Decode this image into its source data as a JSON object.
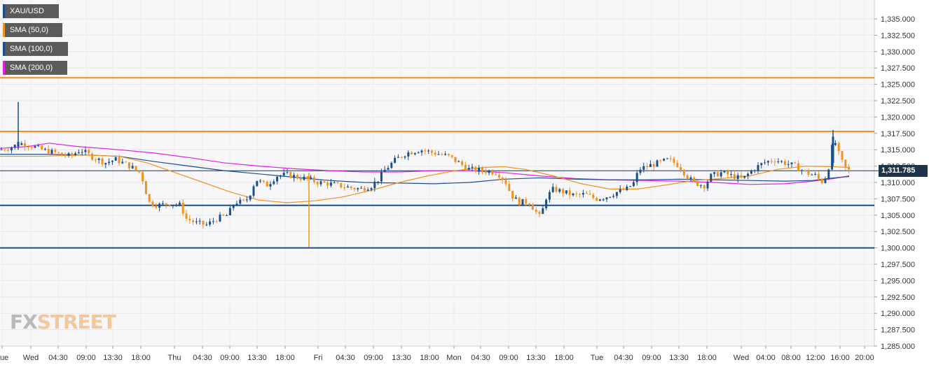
{
  "legend": [
    {
      "label": "XAU/USD",
      "color": "#1b4f8a"
    },
    {
      "label": "SMA (50,0)",
      "color": "#f0921e"
    },
    {
      "label": "SMA (100,0)",
      "color": "#1b4f8a"
    },
    {
      "label": "SMA (200,0)",
      "color": "#e022e0"
    }
  ],
  "logo": {
    "fx": "FX",
    "street": "STREET"
  },
  "current_price": "1,311.785",
  "colors": {
    "up": "#1b4f8a",
    "down": "#f0921e",
    "sma50": "#f0921e",
    "sma100": "#1b4f8a",
    "sma200": "#e022e0",
    "resistance": "#f0921e",
    "support": "#1b4f8a"
  },
  "chart_data": {
    "type": "candlestick",
    "symbol": "XAU/USD",
    "ylim": [
      1285,
      1337
    ],
    "y_ticks": [
      "1,335.000",
      "1,332.500",
      "1,330.000",
      "1,327.500",
      "1,325.000",
      "1,322.500",
      "1,320.000",
      "1,317.500",
      "1,315.000",
      "1,312.500",
      "1,310.000",
      "1,307.500",
      "1,305.000",
      "1,302.500",
      "1,300.000",
      "1,297.500",
      "1,295.000",
      "1,292.500",
      "1,290.000",
      "1,287.500",
      "1,285.000"
    ],
    "x_ticks": [
      "Tue",
      "Wed",
      "04:30",
      "09:00",
      "13:30",
      "18:00",
      "Thu",
      "04:30",
      "09:00",
      "13:30",
      "18:00",
      "Fri",
      "04:30",
      "09:00",
      "13:30",
      "18:00",
      "Mon",
      "04:30",
      "09:00",
      "13:30",
      "18:00",
      "Tue",
      "04:30",
      "09:00",
      "13:30",
      "18:00",
      "Wed",
      "04:00",
      "08:00",
      "12:00",
      "16:00",
      "20:00"
    ],
    "horizontal_lines": [
      {
        "value": 1326.0,
        "color": "#f0921e"
      },
      {
        "value": 1317.8,
        "color": "#f0921e"
      },
      {
        "value": 1306.5,
        "color": "#1b4f8a"
      },
      {
        "value": 1300.0,
        "color": "#1b4f8a"
      },
      {
        "value": 1311.785,
        "color": "#1f3448"
      }
    ],
    "close_path": [
      [
        0,
        1315.0
      ],
      [
        20,
        1315.5
      ],
      [
        25,
        1316.0
      ],
      [
        40,
        1315.8
      ],
      [
        60,
        1315.0
      ],
      [
        80,
        1314.5
      ],
      [
        100,
        1314.0
      ],
      [
        115,
        1315.0
      ],
      [
        130,
        1314.0
      ],
      [
        150,
        1313.0
      ],
      [
        165,
        1313.5
      ],
      [
        185,
        1312.5
      ],
      [
        200,
        1311.5
      ],
      [
        205,
        1310.0
      ],
      [
        212,
        1307.0
      ],
      [
        225,
        1306.5
      ],
      [
        245,
        1306.8
      ],
      [
        258,
        1306.5
      ],
      [
        265,
        1304.5
      ],
      [
        280,
        1303.8
      ],
      [
        295,
        1303.5
      ],
      [
        310,
        1304.5
      ],
      [
        325,
        1305.0
      ],
      [
        335,
        1307.0
      ],
      [
        350,
        1307.0
      ],
      [
        358,
        1308.5
      ],
      [
        365,
        1310.5
      ],
      [
        380,
        1309.5
      ],
      [
        395,
        1311.0
      ],
      [
        410,
        1311.2
      ],
      [
        425,
        1310.8
      ],
      [
        440,
        1310.5
      ],
      [
        455,
        1310.0
      ],
      [
        470,
        1309.8
      ],
      [
        485,
        1309.5
      ],
      [
        500,
        1309.2
      ],
      [
        515,
        1309.0
      ],
      [
        530,
        1309.5
      ],
      [
        540,
        1310.5
      ],
      [
        550,
        1312.0
      ],
      [
        565,
        1313.5
      ],
      [
        580,
        1314.5
      ],
      [
        600,
        1315.0
      ],
      [
        620,
        1314.5
      ],
      [
        640,
        1314.0
      ],
      [
        655,
        1313.0
      ],
      [
        670,
        1312.0
      ],
      [
        690,
        1311.8
      ],
      [
        710,
        1311.5
      ],
      [
        722,
        1310.0
      ],
      [
        730,
        1308.0
      ],
      [
        740,
        1307.0
      ],
      [
        755,
        1307.0
      ],
      [
        765,
        1305.5
      ],
      [
        772,
        1304.5
      ],
      [
        778,
        1307.5
      ],
      [
        790,
        1309.0
      ],
      [
        805,
        1308.5
      ],
      [
        820,
        1308.0
      ],
      [
        835,
        1308.2
      ],
      [
        850,
        1307.5
      ],
      [
        865,
        1307.8
      ],
      [
        880,
        1308.5
      ],
      [
        895,
        1309.0
      ],
      [
        905,
        1310.0
      ],
      [
        912,
        1312.0
      ],
      [
        925,
        1312.5
      ],
      [
        940,
        1313.0
      ],
      [
        955,
        1313.5
      ],
      [
        970,
        1312.5
      ],
      [
        980,
        1311.0
      ],
      [
        990,
        1310.0
      ],
      [
        1005,
        1309.5
      ],
      [
        1015,
        1311.0
      ],
      [
        1030,
        1311.5
      ],
      [
        1045,
        1311.0
      ],
      [
        1060,
        1310.5
      ],
      [
        1075,
        1312.0
      ],
      [
        1090,
        1313.0
      ],
      [
        1105,
        1313.5
      ],
      [
        1120,
        1313.0
      ],
      [
        1135,
        1312.5
      ],
      [
        1150,
        1311.5
      ],
      [
        1165,
        1311.0
      ],
      [
        1172,
        1310.0
      ],
      [
        1180,
        1311.0
      ],
      [
        1185,
        1313.5
      ],
      [
        1190,
        1317.0
      ],
      [
        1195,
        1315.0
      ],
      [
        1200,
        1313.5
      ],
      [
        1205,
        1312.5
      ],
      [
        1210,
        1311.8
      ]
    ],
    "spikes": [
      {
        "x": 26,
        "open": 1315.5,
        "high": 1322.3,
        "low": 1315.0,
        "close": 1316.2
      },
      {
        "x": 441,
        "open": 1311.0,
        "high": 1311.5,
        "low": 1300.1,
        "close": 1310.5
      },
      {
        "x": 1189,
        "open": 1313.0,
        "high": 1318.0,
        "low": 1312.5,
        "close": 1317.0
      }
    ],
    "sma50": [
      [
        0,
        1314.0
      ],
      [
        60,
        1314.0
      ],
      [
        120,
        1314.2
      ],
      [
        170,
        1314.0
      ],
      [
        210,
        1313.0
      ],
      [
        250,
        1311.5
      ],
      [
        290,
        1310.0
      ],
      [
        330,
        1308.5
      ],
      [
        370,
        1307.3
      ],
      [
        410,
        1306.9
      ],
      [
        450,
        1307.2
      ],
      [
        490,
        1307.8
      ],
      [
        530,
        1308.8
      ],
      [
        570,
        1310.0
      ],
      [
        610,
        1311.0
      ],
      [
        650,
        1311.8
      ],
      [
        690,
        1312.3
      ],
      [
        720,
        1312.4
      ],
      [
        750,
        1312.0
      ],
      [
        790,
        1311.0
      ],
      [
        830,
        1309.8
      ],
      [
        870,
        1309.0
      ],
      [
        910,
        1309.0
      ],
      [
        950,
        1309.6
      ],
      [
        990,
        1310.3
      ],
      [
        1030,
        1310.6
      ],
      [
        1070,
        1311.0
      ],
      [
        1110,
        1312.0
      ],
      [
        1150,
        1312.5
      ],
      [
        1190,
        1312.4
      ],
      [
        1210,
        1312.3
      ]
    ],
    "sma100": [
      [
        0,
        1314.3
      ],
      [
        60,
        1314.3
      ],
      [
        120,
        1314.2
      ],
      [
        170,
        1314.0
      ],
      [
        220,
        1313.2
      ],
      [
        270,
        1312.5
      ],
      [
        320,
        1311.8
      ],
      [
        370,
        1311.3
      ],
      [
        420,
        1310.8
      ],
      [
        470,
        1310.3
      ],
      [
        520,
        1310.0
      ],
      [
        570,
        1309.9
      ],
      [
        620,
        1309.8
      ],
      [
        670,
        1310.0
      ],
      [
        720,
        1310.5
      ],
      [
        770,
        1310.7
      ],
      [
        820,
        1310.5
      ],
      [
        870,
        1310.4
      ],
      [
        920,
        1310.4
      ],
      [
        970,
        1310.5
      ],
      [
        1020,
        1310.4
      ],
      [
        1070,
        1310.3
      ],
      [
        1120,
        1310.2
      ],
      [
        1160,
        1310.3
      ],
      [
        1190,
        1310.7
      ],
      [
        1212,
        1310.9
      ]
    ],
    "sma200": [
      [
        0,
        1315.2
      ],
      [
        40,
        1315.5
      ],
      [
        70,
        1316.0
      ],
      [
        110,
        1315.5
      ],
      [
        170,
        1315.0
      ],
      [
        220,
        1314.5
      ],
      [
        270,
        1313.8
      ],
      [
        320,
        1313.0
      ],
      [
        370,
        1312.5
      ],
      [
        420,
        1312.1
      ],
      [
        470,
        1311.8
      ],
      [
        520,
        1311.6
      ],
      [
        570,
        1311.6
      ],
      [
        620,
        1311.8
      ],
      [
        670,
        1311.8
      ],
      [
        720,
        1311.5
      ],
      [
        770,
        1311.0
      ],
      [
        820,
        1310.6
      ],
      [
        870,
        1310.4
      ],
      [
        920,
        1310.3
      ],
      [
        970,
        1310.2
      ],
      [
        1020,
        1310.0
      ],
      [
        1070,
        1309.7
      ],
      [
        1120,
        1309.8
      ],
      [
        1160,
        1310.2
      ],
      [
        1190,
        1310.6
      ],
      [
        1212,
        1311.0
      ]
    ]
  }
}
